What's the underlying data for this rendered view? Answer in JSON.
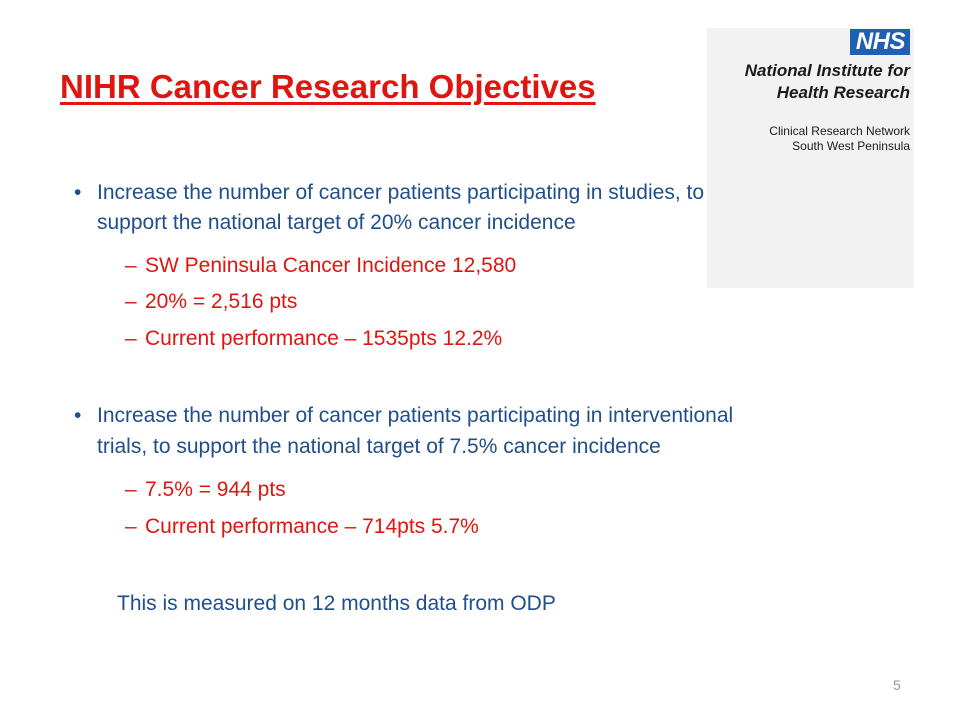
{
  "title": "NIHR Cancer Research Objectives",
  "logo": {
    "nhs": "NHS",
    "name_line1": "National Institute for",
    "name_line2": "Health Research",
    "sub_line1": "Clinical Research Network",
    "sub_line2": "South West Peninsula"
  },
  "bullets": [
    {
      "line1": "Increase the number of cancer patients participating in studies, to",
      "line2": "support the national target of 20% cancer incidence",
      "subitems": [
        "SW Peninsula Cancer Incidence 12,580",
        "20% = 2,516 pts",
        "Current performance – 1535pts  12.2%"
      ]
    },
    {
      "line1": "Increase the number of cancer patients participating in interventional",
      "line2": "trials, to support the national target of 7.5% cancer incidence",
      "subitems": [
        "7.5% = 944 pts",
        "Current performance – 714pts  5.7%"
      ]
    }
  ],
  "bullet_marker": "•",
  "sub_marker": "–",
  "note": "This is measured on 12 months data from ODP",
  "page_number": "5",
  "colors": {
    "title": "#e0150f",
    "body": "#1f4e8c",
    "sub": "#e0150f",
    "nhs_badge": "#1f5fb4"
  }
}
